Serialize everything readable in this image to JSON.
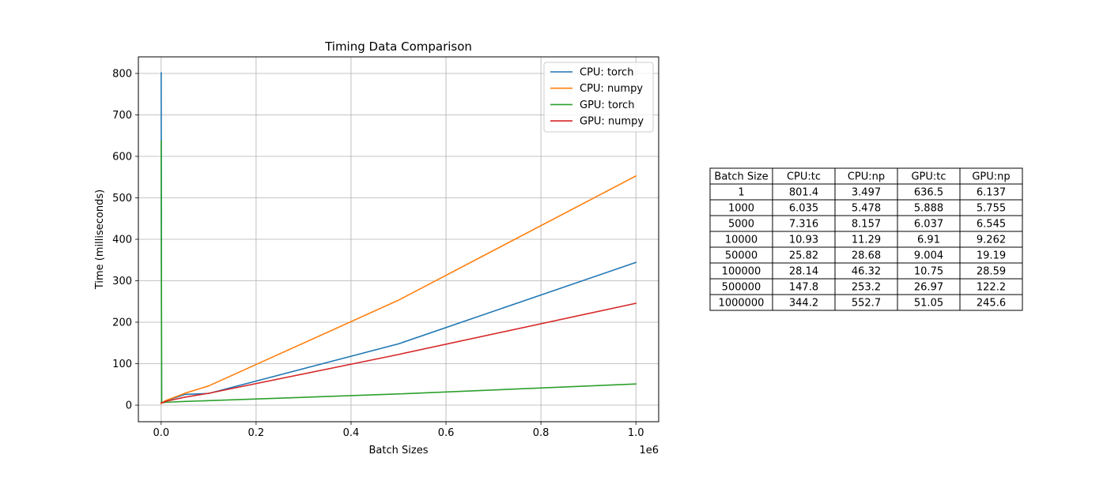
{
  "chart_data": {
    "type": "line",
    "title": "Timing Data Comparison",
    "xlabel": "Batch Sizes",
    "ylabel": "Time (milliseconds)",
    "x_offset_label": "1e6",
    "x": [
      1,
      1000,
      5000,
      10000,
      50000,
      100000,
      500000,
      1000000
    ],
    "xlim": [
      -48000,
      1048000
    ],
    "ylim": [
      -40,
      840
    ],
    "xticks": [
      0,
      200000,
      400000,
      600000,
      800000,
      1000000
    ],
    "xtick_labels": [
      "0.0",
      "0.2",
      "0.4",
      "0.6",
      "0.8",
      "1.0"
    ],
    "yticks": [
      0,
      100,
      200,
      300,
      400,
      500,
      600,
      700,
      800
    ],
    "ytick_labels": [
      "0",
      "100",
      "200",
      "300",
      "400",
      "500",
      "600",
      "700",
      "800"
    ],
    "grid": true,
    "legend_position": "top-right",
    "series": [
      {
        "name": "CPU: torch",
        "color": "#1f77b4",
        "values": [
          801.4,
          6.035,
          7.316,
          10.93,
          25.82,
          28.14,
          147.8,
          344.2
        ]
      },
      {
        "name": "CPU: numpy",
        "color": "#ff7f0e",
        "values": [
          3.497,
          5.478,
          8.157,
          11.29,
          28.68,
          46.32,
          253.2,
          552.7
        ]
      },
      {
        "name": "GPU: torch",
        "color": "#2ca02c",
        "values": [
          636.5,
          5.888,
          6.037,
          6.91,
          9.004,
          10.75,
          26.97,
          51.05
        ]
      },
      {
        "name": "GPU: numpy",
        "color": "#d62728",
        "values": [
          6.137,
          5.755,
          6.545,
          9.262,
          19.19,
          28.59,
          122.2,
          245.6
        ]
      }
    ]
  },
  "table": {
    "headers": [
      "Batch Size",
      "CPU:tc",
      "CPU:np",
      "GPU:tc",
      "GPU:np"
    ],
    "rows": [
      [
        "1",
        "801.4",
        "3.497",
        "636.5",
        "6.137"
      ],
      [
        "1000",
        "6.035",
        "5.478",
        "5.888",
        "5.755"
      ],
      [
        "5000",
        "7.316",
        "8.157",
        "6.037",
        "6.545"
      ],
      [
        "10000",
        "10.93",
        "11.29",
        "6.91",
        "9.262"
      ],
      [
        "50000",
        "25.82",
        "28.68",
        "9.004",
        "19.19"
      ],
      [
        "100000",
        "28.14",
        "46.32",
        "10.75",
        "28.59"
      ],
      [
        "500000",
        "147.8",
        "253.2",
        "26.97",
        "122.2"
      ],
      [
        "1000000",
        "344.2",
        "552.7",
        "51.05",
        "245.6"
      ]
    ]
  }
}
